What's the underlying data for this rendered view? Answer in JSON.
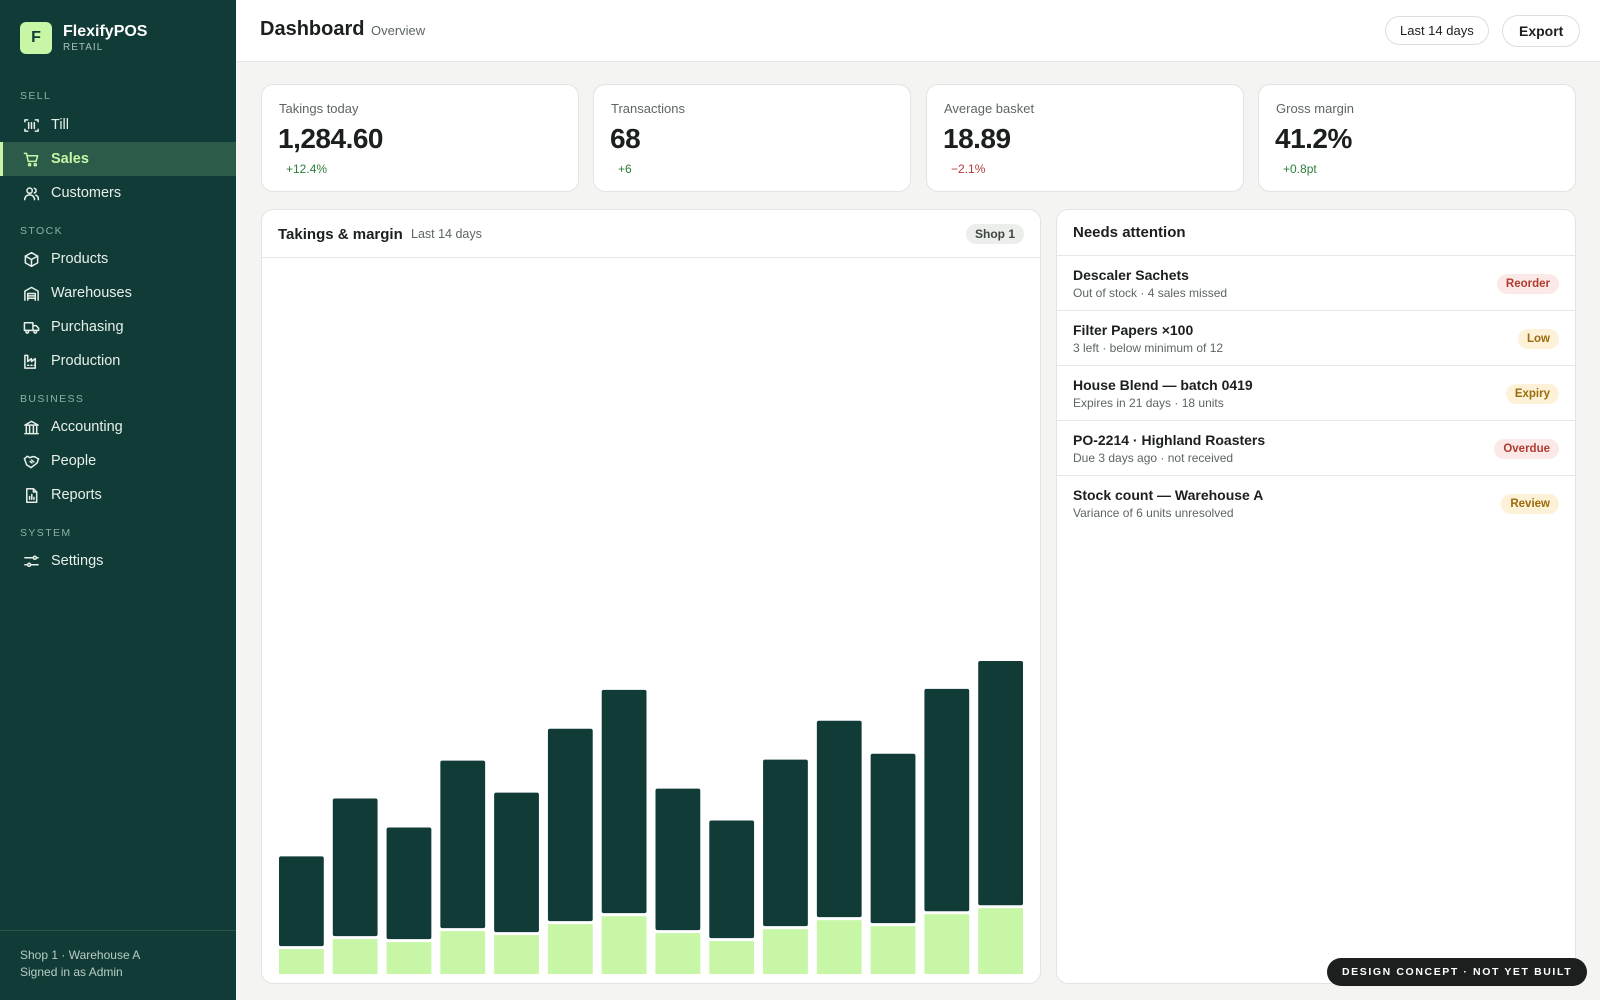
{
  "brand": {
    "logo_letter": "F",
    "name": "FlexifyPOS",
    "sub": "RETAIL"
  },
  "nav": {
    "sections": {
      "sell": "SELL",
      "stock": "STOCK",
      "business": "BUSINESS",
      "system": "SYSTEM"
    },
    "items": {
      "till": "Till",
      "sales": "Sales",
      "customers": "Customers",
      "products": "Products",
      "warehouses": "Warehouses",
      "purchasing": "Purchasing",
      "production": "Production",
      "accounting": "Accounting",
      "people": "People",
      "reports": "Reports",
      "settings": "Settings"
    },
    "active": "sales"
  },
  "footer": {
    "location": "Shop 1 · Warehouse A",
    "signed_in": "Signed in as Admin"
  },
  "header": {
    "title": "Dashboard",
    "subtitle": "Overview",
    "range_button": "Last 14 days",
    "export_button": "Export"
  },
  "kpis": [
    {
      "label": "Takings today",
      "value": "1,284.60",
      "delta": "+12.4%",
      "trend": "up"
    },
    {
      "label": "Transactions",
      "value": "68",
      "delta": "+6",
      "trend": "up"
    },
    {
      "label": "Average basket",
      "value": "18.89",
      "delta": "−2.1%",
      "trend": "down"
    },
    {
      "label": "Gross margin",
      "value": "41.2%",
      "delta": "+0.8pt",
      "trend": "up"
    }
  ],
  "chart_panel": {
    "title": "Takings & margin",
    "subtitle": "Last 14 days",
    "badge": "Shop 1"
  },
  "chart_data": {
    "type": "bar",
    "stacked": true,
    "x_axis_labels_shown": false,
    "y_axis_shown": false,
    "categories_count": 14,
    "colors": {
      "takings": "#113b36",
      "margin": "#c6f6a6"
    },
    "series": [
      {
        "values": [
          90,
          138,
          112,
          168,
          140,
          193,
          224,
          142,
          118,
          167,
          197,
          170,
          223,
          245
        ]
      },
      {
        "values": [
          25,
          35,
          32,
          43,
          39,
          50,
          58,
          41,
          33,
          45,
          54,
          48,
          60,
          66
        ]
      }
    ]
  },
  "attention": {
    "title": "Needs attention",
    "items": [
      {
        "name": "Descaler Sachets",
        "detail": "Out of stock · 4 sales missed",
        "badge": "Reorder",
        "tone": "red"
      },
      {
        "name": "Filter Papers ×100",
        "detail": "3 left · below minimum of 12",
        "badge": "Low",
        "tone": "amber"
      },
      {
        "name": "House Blend — batch 0419",
        "detail": "Expires in 21 days · 18 units",
        "badge": "Expiry",
        "tone": "amber"
      },
      {
        "name": "PO-2214 · Highland Roasters",
        "detail": "Due 3 days ago · not received",
        "badge": "Overdue",
        "tone": "red"
      },
      {
        "name": "Stock count — Warehouse A",
        "detail": "Variance of 6 units unresolved",
        "badge": "Review",
        "tone": "amber"
      }
    ]
  },
  "concept_note": "DESIGN CONCEPT · NOT YET BUILT"
}
